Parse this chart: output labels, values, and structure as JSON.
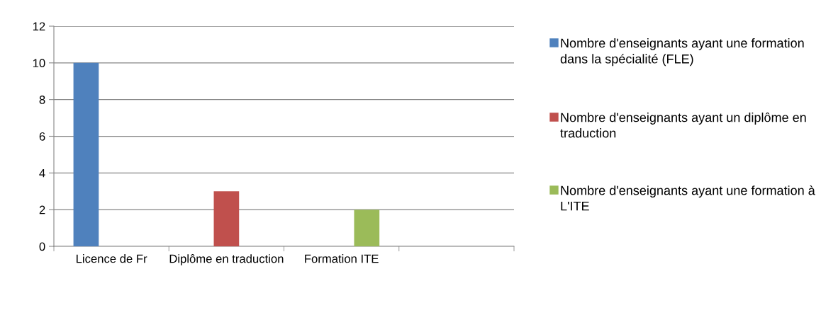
{
  "chart_data": {
    "type": "bar",
    "categories": [
      "Licence de Fr",
      "Diplôme en traduction",
      "Formation ITE",
      null
    ],
    "series": [
      {
        "name": "Nombre d'enseignants ayant une formation dans la spécialité (FLE)",
        "color": "#4f81bd",
        "values": [
          10,
          null,
          null,
          null
        ]
      },
      {
        "name": "Nombre d'enseignants ayant un diplôme en traduction",
        "color": "#c0504d",
        "values": [
          null,
          3,
          null,
          null
        ]
      },
      {
        "name": "Nombre d'enseignants ayant une formation à L'ITE",
        "color": "#9bbb59",
        "values": [
          null,
          null,
          2,
          null
        ]
      }
    ],
    "ylim": [
      0,
      12
    ],
    "yticks": [
      0,
      2,
      4,
      6,
      8,
      10,
      12
    ],
    "grid": "y",
    "legend": "right"
  }
}
